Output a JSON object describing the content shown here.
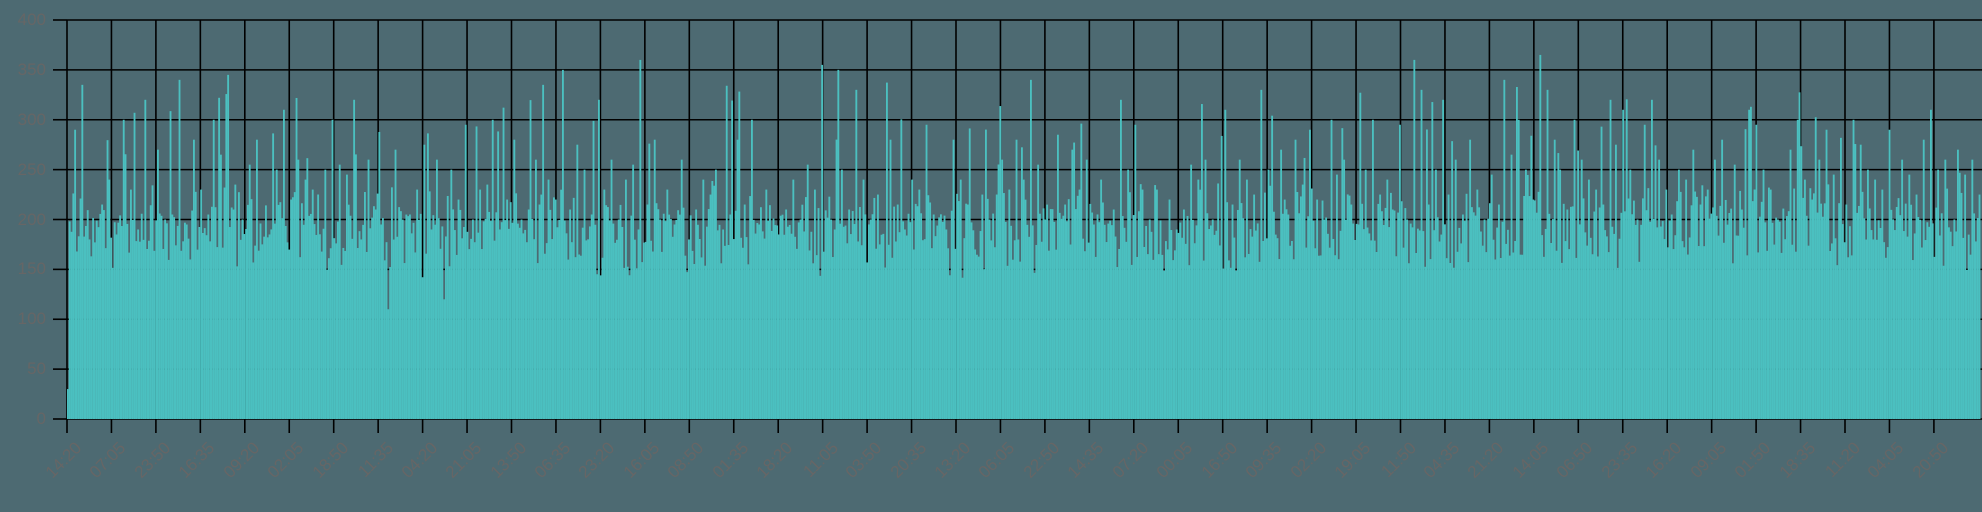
{
  "chart_data": {
    "type": "bar",
    "title": "",
    "xlabel": "",
    "ylabel": "",
    "ylim": [
      0,
      400
    ],
    "yticks": [
      0,
      50,
      100,
      150,
      200,
      250,
      300,
      350,
      400
    ],
    "grid": true,
    "legend": null,
    "bar_color": "#4bc0c0",
    "background_color": "#4d6a72",
    "grid_color": "#000000",
    "label_color": "#666666",
    "xtick_labels": [
      "14:20",
      "07:05",
      "23:50",
      "16:35",
      "09:20",
      "02:05",
      "18:50",
      "11:35",
      "04:20",
      "21:05",
      "13:50",
      "06:35",
      "23:20",
      "16:05",
      "08:50",
      "01:35",
      "18:20",
      "11:05",
      "03:50",
      "20:35",
      "13:20",
      "06:05",
      "22:50",
      "14:35",
      "07:20",
      "00:05",
      "16:50",
      "09:35",
      "02:20",
      "19:05",
      "11:50",
      "04:35",
      "21:20",
      "14:05",
      "06:50",
      "23:35",
      "16:20",
      "09:05",
      "01:50",
      "18:35",
      "11:20",
      "04:05",
      "20:50"
    ],
    "series": [
      {
        "name": "values",
        "note": "Dense time series (~1000 bars); sampled 5 values per x-tick interval, estimated from pixel heights",
        "values": [
          30,
          290,
          335,
          180,
          300,
          215,
          240,
          185,
          300,
          230,
          190,
          320,
          210,
          270,
          200,
          205,
          340,
          195,
          280,
          230,
          210,
          300,
          265,
          345,
          235,
          200,
          255,
          280,
          200,
          185,
          250,
          310,
          220,
          260,
          240,
          230,
          190,
          250,
          300,
          255,
          245,
          320,
          180,
          260,
          210,
          195,
          110,
          270,
          200,
          205,
          230,
          275,
          190,
          260,
          120,
          250,
          220,
          295,
          200,
          230,
          235,
          300,
          190,
          220,
          280,
          200,
          210,
          260,
          335,
          240,
          220,
          350,
          210,
          275,
          250,
          205,
          320,
          230,
          260,
          200,
          240,
          255,
          360,
          215,
          280,
          200,
          230,
          195,
          260,
          180,
          210,
          240,
          225,
          250,
          190,
          205,
          280,
          215,
          300,
          195,
          230,
          245,
          185,
          210,
          240,
          200,
          255,
          230,
          355,
          215,
          190,
          250,
          210,
          330,
          240,
          200,
          225,
          260,
          280,
          215,
          190,
          240,
          230,
          295,
          205,
          230,
          190,
          280,
          240,
          215,
          170,
          225,
          200,
          235,
          260,
          230,
          280,
          240,
          340,
          255,
          200,
          250,
          285,
          215,
          270,
          230,
          260,
          195,
          240,
          215,
          210,
          320,
          250,
          295,
          230,
          200,
          230,
          270,
          220,
          190,
          210,
          255,
          240,
          260,
          200,
          230,
          310,
          215,
          260,
          240,
          225,
          330,
          250,
          200,
          270,
          205,
          280,
          235,
          290,
          220,
          200,
          300,
          245,
          260,
          215,
          195,
          250,
          300,
          225,
          240,
          210,
          295,
          200,
          360,
          330,
          215,
          250,
          320,
          225,
          260,
          205,
          280,
          230,
          200,
          245,
          215,
          340,
          265,
          300,
          250,
          220,
          365,
          330,
          280,
          250,
          210,
          300,
          260,
          240,
          230,
          215,
          320,
          275,
          310,
          250,
          200,
          295,
          320,
          260,
          230,
          205,
          250,
          240,
          270,
          215,
          230,
          260,
          280,
          245,
          255,
          210,
          310,
          295,
          250,
          230,
          200,
          315,
          270,
          300,
          240,
          220,
          260,
          290,
          245,
          250,
          215,
          300,
          275,
          250,
          240,
          230,
          290,
          330,
          260,
          245,
          225,
          280,
          310,
          250,
          260,
          230,
          270,
          245,
          260,
          225
        ]
      }
    ]
  },
  "axes": {
    "y_tick_labels": [
      "0",
      "50",
      "100",
      "150",
      "200",
      "250",
      "300",
      "350",
      "400"
    ]
  }
}
